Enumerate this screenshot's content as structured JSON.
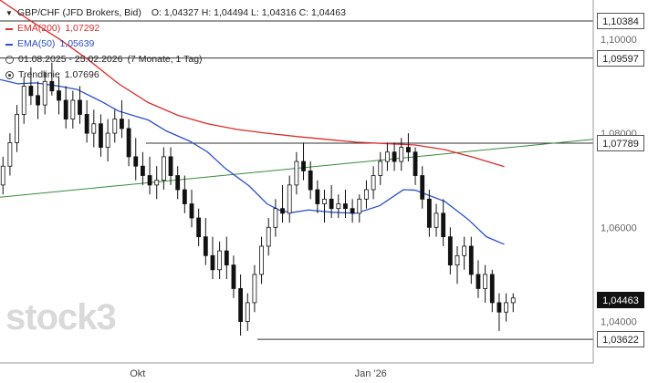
{
  "header": {
    "instrument": "GBP/CHF (JFD Brokers, Bid)",
    "ohlc": "O: 1,04327  H: 1,04494  L: 1,04316  C: 1,04463",
    "ema200_label": "EMA(200)",
    "ema200_value": "1,07292",
    "ema50_label": "EMA(50)",
    "ema50_value": "1,05639",
    "range": "01.08.2025 - 25.02.2026",
    "range_detail": "(7 Monate, 1 Tag)",
    "trendline_label": "Trendlinie",
    "trendline_value": "1.07696"
  },
  "colors": {
    "ema200": "#e02a2a",
    "ema50": "#2a4fd0",
    "trendline": "#3a8a3a",
    "candle": "#111111",
    "hline": "#333333"
  },
  "watermark": "stock3",
  "price_tags": {
    "t1": "1,10384",
    "t2": "1,09597",
    "t3": "1,07789",
    "current": "1,04463",
    "t5": "1,03622"
  },
  "chart_data": {
    "type": "candlestick",
    "y_axis_labels": [
      "1,10000",
      "1,08000",
      "1,06000",
      "1,04000"
    ],
    "y_axis_values": [
      1.1,
      1.08,
      1.06,
      1.04
    ],
    "ylim": [
      1.0312,
      1.1083
    ],
    "x_axis_labels": [
      {
        "label": "Okt",
        "pos": 0.232
      },
      {
        "label": "Jan '26",
        "pos": 0.625
      }
    ],
    "horizontal_lines": [
      1.10384,
      1.09597,
      1.07789,
      1.03622
    ],
    "trendline": {
      "start": 1.0664,
      "end": 1.0787
    },
    "ema200": [
      [
        0.0,
        1.1083
      ],
      [
        0.05,
        1.104
      ],
      [
        0.1,
        1.1
      ],
      [
        0.15,
        1.0955
      ],
      [
        0.2,
        1.0905
      ],
      [
        0.25,
        1.0865
      ],
      [
        0.3,
        1.0838
      ],
      [
        0.35,
        1.082
      ],
      [
        0.4,
        1.0808
      ],
      [
        0.45,
        1.08
      ],
      [
        0.5,
        1.0793
      ],
      [
        0.55,
        1.0787
      ],
      [
        0.6,
        1.0781
      ],
      [
        0.65,
        1.0778
      ],
      [
        0.7,
        1.0775
      ],
      [
        0.75,
        1.0765
      ],
      [
        0.8,
        1.0748
      ],
      [
        0.85,
        1.0729
      ]
    ],
    "ema50": [
      [
        0.0,
        1.0914
      ],
      [
        0.03,
        1.0905
      ],
      [
        0.06,
        1.0907
      ],
      [
        0.1,
        1.09
      ],
      [
        0.13,
        1.0893
      ],
      [
        0.17,
        1.0868
      ],
      [
        0.2,
        1.0847
      ],
      [
        0.25,
        1.0828
      ],
      [
        0.28,
        1.0805
      ],
      [
        0.32,
        1.0783
      ],
      [
        0.35,
        1.076
      ],
      [
        0.38,
        1.0725
      ],
      [
        0.42,
        1.0688
      ],
      [
        0.45,
        1.065
      ],
      [
        0.47,
        1.0637
      ],
      [
        0.49,
        1.0631
      ],
      [
        0.52,
        1.0637
      ],
      [
        0.56,
        1.0632
      ],
      [
        0.6,
        1.063
      ],
      [
        0.64,
        1.0646
      ],
      [
        0.68,
        1.068
      ],
      [
        0.7,
        1.0679
      ],
      [
        0.75,
        1.0655
      ],
      [
        0.79,
        1.0616
      ],
      [
        0.82,
        1.058
      ],
      [
        0.85,
        1.0564
      ]
    ],
    "candles": [
      [
        1.069,
        1.075,
        1.067,
        1.073
      ],
      [
        1.073,
        1.08,
        1.071,
        1.078
      ],
      [
        1.078,
        1.086,
        1.076,
        1.084
      ],
      [
        1.084,
        1.092,
        1.082,
        1.09
      ],
      [
        1.09,
        1.094,
        1.086,
        1.088
      ],
      [
        1.088,
        1.091,
        1.083,
        1.086
      ],
      [
        1.086,
        1.093,
        1.084,
        1.091
      ],
      [
        1.091,
        1.095,
        1.088,
        1.089
      ],
      [
        1.089,
        1.092,
        1.084,
        1.087
      ],
      [
        1.087,
        1.09,
        1.081,
        1.083
      ],
      [
        1.083,
        1.089,
        1.081,
        1.087
      ],
      [
        1.087,
        1.09,
        1.082,
        1.084
      ],
      [
        1.084,
        1.087,
        1.078,
        1.08
      ],
      [
        1.08,
        1.085,
        1.077,
        1.082
      ],
      [
        1.082,
        1.084,
        1.075,
        1.077
      ],
      [
        1.077,
        1.083,
        1.074,
        1.08
      ],
      [
        1.08,
        1.085,
        1.078,
        1.083
      ],
      [
        1.083,
        1.087,
        1.079,
        1.081
      ],
      [
        1.081,
        1.083,
        1.073,
        1.075
      ],
      [
        1.075,
        1.079,
        1.07,
        1.073
      ],
      [
        1.073,
        1.076,
        1.069,
        1.071
      ],
      [
        1.071,
        1.075,
        1.067,
        1.069
      ],
      [
        1.069,
        1.073,
        1.066,
        1.07
      ],
      [
        1.07,
        1.077,
        1.068,
        1.075
      ],
      [
        1.075,
        1.077,
        1.069,
        1.071
      ],
      [
        1.071,
        1.073,
        1.066,
        1.068
      ],
      [
        1.068,
        1.071,
        1.063,
        1.065
      ],
      [
        1.065,
        1.068,
        1.06,
        1.062
      ],
      [
        1.062,
        1.064,
        1.056,
        1.058
      ],
      [
        1.058,
        1.062,
        1.052,
        1.054
      ],
      [
        1.054,
        1.058,
        1.049,
        1.051
      ],
      [
        1.051,
        1.057,
        1.049,
        1.055
      ],
      [
        1.055,
        1.058,
        1.049,
        1.052
      ],
      [
        1.052,
        1.054,
        1.045,
        1.047
      ],
      [
        1.047,
        1.05,
        1.037,
        1.04
      ],
      [
        1.04,
        1.046,
        1.038,
        1.044
      ],
      [
        1.044,
        1.052,
        1.042,
        1.05
      ],
      [
        1.05,
        1.058,
        1.048,
        1.056
      ],
      [
        1.056,
        1.062,
        1.054,
        1.06
      ],
      [
        1.06,
        1.066,
        1.058,
        1.064
      ],
      [
        1.064,
        1.069,
        1.061,
        1.063
      ],
      [
        1.063,
        1.071,
        1.061,
        1.069
      ],
      [
        1.069,
        1.076,
        1.067,
        1.074
      ],
      [
        1.074,
        1.078,
        1.07,
        1.072
      ],
      [
        1.072,
        1.074,
        1.066,
        1.068
      ],
      [
        1.068,
        1.07,
        1.063,
        1.065
      ],
      [
        1.065,
        1.068,
        1.061,
        1.066
      ],
      [
        1.066,
        1.069,
        1.062,
        1.064
      ],
      [
        1.064,
        1.067,
        1.062,
        1.065
      ],
      [
        1.065,
        1.068,
        1.062,
        1.064
      ],
      [
        1.064,
        1.066,
        1.061,
        1.063
      ],
      [
        1.063,
        1.067,
        1.061,
        1.066
      ],
      [
        1.066,
        1.07,
        1.064,
        1.068
      ],
      [
        1.068,
        1.073,
        1.066,
        1.071
      ],
      [
        1.071,
        1.076,
        1.069,
        1.074
      ],
      [
        1.074,
        1.078,
        1.072,
        1.076
      ],
      [
        1.076,
        1.078,
        1.072,
        1.074
      ],
      [
        1.074,
        1.079,
        1.072,
        1.077
      ],
      [
        1.077,
        1.08,
        1.074,
        1.076
      ],
      [
        1.076,
        1.077,
        1.069,
        1.071
      ],
      [
        1.071,
        1.073,
        1.064,
        1.066
      ],
      [
        1.066,
        1.068,
        1.058,
        1.06
      ],
      [
        1.06,
        1.065,
        1.058,
        1.063
      ],
      [
        1.063,
        1.066,
        1.056,
        1.058
      ],
      [
        1.058,
        1.06,
        1.05,
        1.052
      ],
      [
        1.052,
        1.056,
        1.048,
        1.054
      ],
      [
        1.054,
        1.058,
        1.051,
        1.056
      ],
      [
        1.056,
        1.058,
        1.048,
        1.05
      ],
      [
        1.05,
        1.053,
        1.045,
        1.047
      ],
      [
        1.047,
        1.052,
        1.044,
        1.05
      ],
      [
        1.05,
        1.051,
        1.042,
        1.044
      ],
      [
        1.044,
        1.046,
        1.038,
        1.042
      ],
      [
        1.042,
        1.046,
        1.04,
        1.044
      ],
      [
        1.044,
        1.046,
        1.042,
        1.045
      ]
    ]
  }
}
